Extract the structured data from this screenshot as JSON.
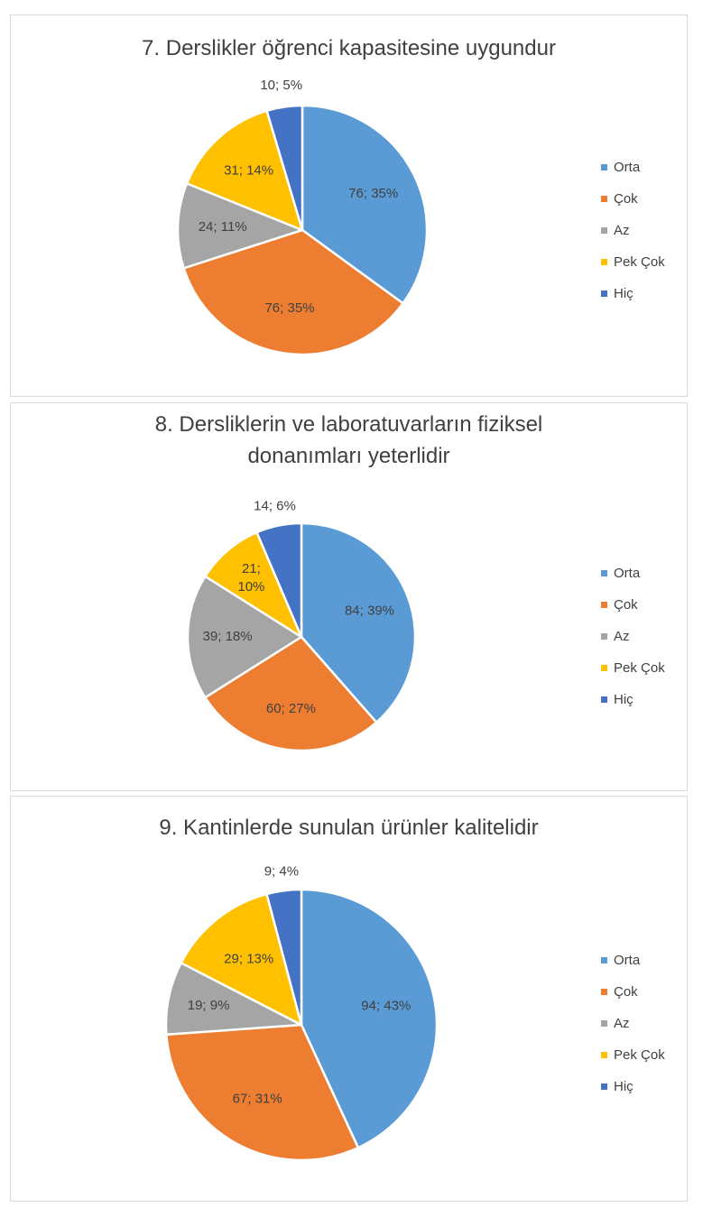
{
  "colors": {
    "Orta": "#5b9bd5",
    "Çok": "#ed7d31",
    "Az": "#a5a5a5",
    "Pek Çok": "#ffc000",
    "Hiç": "#4472c4"
  },
  "chart_data": [
    {
      "type": "pie",
      "title": "7. Derslikler öğrenci kapasitesine uygundur",
      "categories": [
        "Orta",
        "Çok",
        "Az",
        "Pek Çok",
        "Hiç"
      ],
      "values": [
        76,
        76,
        24,
        31,
        10
      ],
      "labels": [
        "76; 35%",
        "76; 35%",
        "24; 11%",
        "31; 14%",
        "10; 5%"
      ],
      "legend_position": "right"
    },
    {
      "type": "pie",
      "title": "8. Dersliklerin ve laboratuvarların fiziksel donanımları yeterlidir",
      "categories": [
        "Orta",
        "Çok",
        "Az",
        "Pek Çok",
        "Hiç"
      ],
      "values": [
        84,
        60,
        39,
        21,
        14
      ],
      "labels": [
        "84; 39%",
        "60; 27%",
        "39; 18%",
        "21; 10%",
        "14; 6%"
      ],
      "legend_position": "right"
    },
    {
      "type": "pie",
      "title": "9. Kantinlerde sunulan ürünler kalitelidir",
      "categories": [
        "Orta",
        "Çok",
        "Az",
        "Pek Çok",
        "Hiç"
      ],
      "values": [
        94,
        67,
        19,
        29,
        9
      ],
      "labels": [
        "94; 43%",
        "67; 31%",
        "19; 9%",
        "29; 13%",
        "9; 4%"
      ],
      "legend_position": "right"
    }
  ]
}
